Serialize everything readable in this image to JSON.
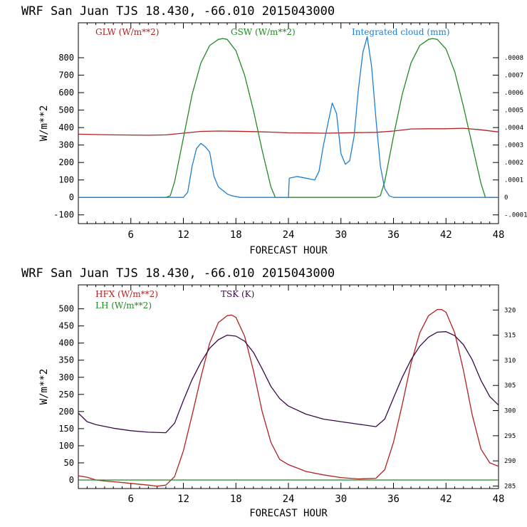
{
  "chart_data": [
    {
      "type": "line",
      "title": "WRF  San Juan TJS  18.430, -66.010  2015043000",
      "xlabel": "FORECAST HOUR",
      "ylabel": "W/m**2",
      "xlim": [
        0,
        48
      ],
      "ylim": [
        -150,
        1000
      ],
      "x_ticks": [
        6,
        12,
        18,
        24,
        30,
        36,
        42,
        48
      ],
      "y_ticks": [
        -100,
        0,
        100,
        200,
        300,
        400,
        500,
        600,
        700,
        800
      ],
      "y2lim": [
        -0.00015,
        0.001
      ],
      "y2_ticks": [
        -0.0001,
        0,
        0.0001,
        0.0002,
        0.0003,
        0.0004,
        0.0005,
        0.0006,
        0.0007,
        0.0008
      ],
      "y2_tick_labels": [
        "-.0001",
        "0",
        ".0001",
        ".0002",
        ".0003",
        ".0004",
        ".0005",
        ".0006",
        ".0007",
        ".0008"
      ],
      "series": [
        {
          "name": "GLW (W/m**2)",
          "color": "#b22222",
          "axis": "left",
          "x": [
            0,
            4,
            8,
            10,
            12,
            14,
            16,
            18,
            20,
            22,
            24,
            26,
            28,
            30,
            32,
            34,
            36,
            38,
            40,
            42,
            44,
            46,
            48
          ],
          "y": [
            362,
            358,
            356,
            358,
            368,
            378,
            380,
            379,
            377,
            374,
            370,
            369,
            368,
            369,
            371,
            373,
            380,
            392,
            393,
            393,
            396,
            387,
            375
          ]
        },
        {
          "name": "GSW (W/m**2)",
          "color": "#228b22",
          "axis": "left",
          "x": [
            0,
            10,
            10.5,
            11,
            12,
            13,
            14,
            15,
            16,
            16.5,
            17,
            18,
            19,
            20,
            21,
            22,
            22.5,
            23,
            34,
            34.5,
            35,
            36,
            37,
            38,
            39,
            40,
            40.5,
            41,
            42,
            43,
            44,
            45,
            46,
            46.5,
            48
          ],
          "y": [
            0,
            0,
            10,
            90,
            340,
            590,
            770,
            870,
            905,
            910,
            905,
            840,
            700,
            500,
            270,
            60,
            0,
            0,
            0,
            10,
            90,
            350,
            590,
            770,
            870,
            905,
            910,
            905,
            850,
            720,
            520,
            300,
            80,
            0,
            0
          ]
        },
        {
          "name": "Integrated cloud (mm)",
          "color": "#1e7fd0",
          "axis": "right",
          "x": [
            0,
            12,
            12.5,
            13,
            13.5,
            14,
            14.5,
            15,
            15.5,
            16,
            16.5,
            17,
            17.5,
            18,
            18.5,
            20,
            24,
            24.1,
            25,
            26,
            27,
            27.5,
            28,
            28.5,
            29,
            29.5,
            30,
            30.5,
            31,
            31.5,
            32,
            32.5,
            33,
            33.5,
            34,
            34.5,
            35,
            35.5,
            36,
            48
          ],
          "y": [
            0,
            0,
            3e-05,
            0.00018,
            0.00028,
            0.00031,
            0.00029,
            0.00026,
            0.00012,
            6e-05,
            4e-05,
            2e-05,
            1e-05,
            5e-06,
            0,
            0,
            0,
            0.00011,
            0.00012,
            0.00011,
            0.0001,
            0.00015,
            0.0003,
            0.00042,
            0.00054,
            0.00048,
            0.00025,
            0.00019,
            0.00021,
            0.00035,
            0.00062,
            0.00083,
            0.00092,
            0.00075,
            0.00045,
            0.00018,
            5e-05,
            1e-05,
            0,
            0
          ]
        }
      ]
    },
    {
      "type": "line",
      "title": "WRF  San Juan TJS  18.430, -66.010  2015043000",
      "xlabel": "FORECAST HOUR",
      "ylabel": "W/m**2",
      "xlim": [
        0,
        48
      ],
      "ylim": [
        -25,
        570
      ],
      "x_ticks": [
        6,
        12,
        18,
        24,
        30,
        36,
        42,
        48
      ],
      "y_ticks": [
        0,
        50,
        100,
        150,
        200,
        250,
        300,
        350,
        400,
        450,
        500
      ],
      "y2lim": [
        284.5,
        325
      ],
      "y2_ticks": [
        285,
        290,
        295,
        300,
        305,
        310,
        315,
        320
      ],
      "y2_tick_labels": [
        "285",
        "290",
        "295",
        "300",
        "305",
        "310",
        "315",
        "320"
      ],
      "series": [
        {
          "name": "HFX (W/m**2)",
          "color": "#b22222",
          "axis": "left",
          "x": [
            0,
            1,
            2,
            3,
            4,
            6,
            8,
            9,
            10,
            11,
            12,
            13,
            14,
            15,
            16,
            17,
            17.5,
            18,
            19,
            20,
            21,
            22,
            23,
            24,
            26,
            28,
            30,
            32,
            34,
            35,
            36,
            37,
            38,
            39,
            40,
            41,
            41.5,
            42,
            43,
            44,
            45,
            46,
            47,
            48
          ],
          "y": [
            12,
            8,
            0,
            -3,
            -5,
            -10,
            -15,
            -18,
            -15,
            10,
            85,
            190,
            300,
            400,
            460,
            480,
            482,
            475,
            420,
            320,
            200,
            110,
            60,
            45,
            25,
            15,
            7,
            3,
            5,
            30,
            110,
            220,
            340,
            430,
            480,
            498,
            498,
            490,
            430,
            320,
            190,
            90,
            50,
            40
          ]
        },
        {
          "name": "LH (W/m**2)",
          "color": "#228b22",
          "axis": "left",
          "x": [
            0,
            48
          ],
          "y": [
            0,
            0
          ]
        },
        {
          "name": "TSK (K)",
          "color": "#3a0a4a",
          "axis": "right",
          "x": [
            0,
            1,
            2,
            4,
            6,
            8,
            10,
            11,
            12,
            13,
            14,
            15,
            16,
            17,
            18,
            19,
            20,
            21,
            22,
            23,
            24,
            26,
            28,
            30,
            32,
            34,
            35,
            36,
            37,
            38,
            39,
            40,
            41,
            42,
            43,
            44,
            45,
            46,
            47,
            48
          ],
          "y": [
            299.5,
            297.8,
            297.2,
            296.5,
            296.0,
            295.7,
            295.6,
            297.5,
            302,
            306.2,
            309.6,
            312.4,
            314.1,
            315.0,
            314.8,
            313.8,
            311.6,
            308.3,
            304.8,
            302.4,
            300.9,
            299.3,
            298.3,
            297.8,
            297.3,
            296.8,
            298.3,
            302.5,
            306.6,
            310.1,
            312.8,
            314.6,
            315.6,
            315.7,
            314.9,
            313.1,
            310.1,
            306.0,
            302.8,
            301.1
          ]
        }
      ]
    }
  ]
}
